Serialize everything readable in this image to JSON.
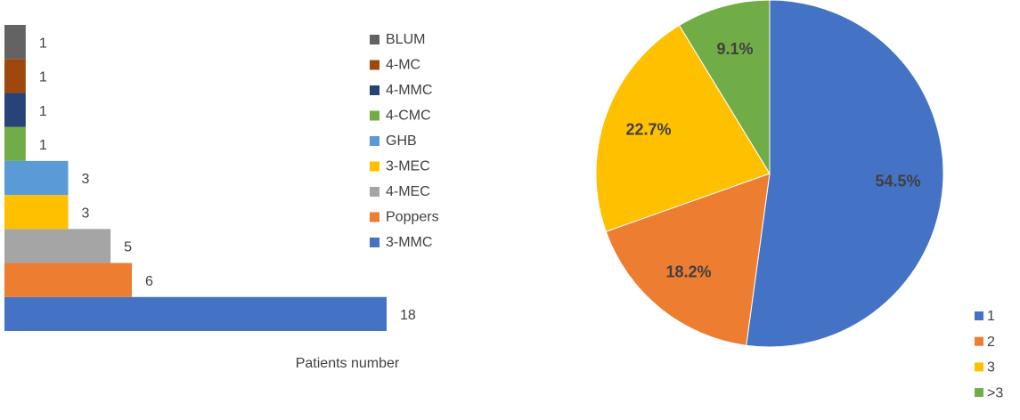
{
  "chart_data": [
    {
      "type": "hbar",
      "x_label": "Patients number",
      "categories": [
        "3-MMC",
        "Poppers",
        "4-MEC",
        "3-MEC",
        "GHB",
        "4-CMC",
        "4-MMC",
        "4-MC",
        "BLUM"
      ],
      "values": [
        18,
        6,
        5,
        3,
        3,
        1,
        1,
        1,
        1
      ],
      "colors": [
        "#4472c4",
        "#ed7d31",
        "#a5a5a5",
        "#ffc000",
        "#5b9bd5",
        "#70ad47",
        "#264478",
        "#9e480e",
        "#636363"
      ]
    },
    {
      "type": "pie",
      "categories": [
        "1",
        "2",
        "3",
        ">3"
      ],
      "values": [
        54.5,
        18.2,
        22.7,
        9.1
      ],
      "value_labels": [
        "54.5%",
        "18.2%",
        "22.7%",
        "9.1%"
      ],
      "colors": [
        "#4472c4",
        "#ed7d31",
        "#ffc000",
        "#70ad47"
      ]
    }
  ]
}
